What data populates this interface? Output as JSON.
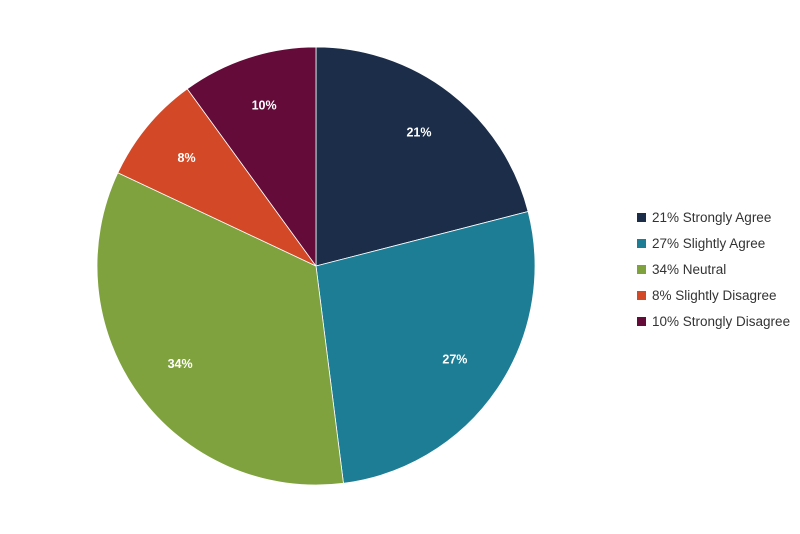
{
  "chart_data": {
    "type": "pie",
    "slices": [
      {
        "label": "21% Strongly Agree",
        "data_label": "21%",
        "value": 21,
        "color": "#1b2d48"
      },
      {
        "label": "27% Slightly Agree",
        "data_label": "27%",
        "value": 27,
        "color": "#1c7d95"
      },
      {
        "label": "34% Neutral",
        "data_label": "34%",
        "value": 34,
        "color": "#7fa23f"
      },
      {
        "label": "8% Slightly Disagree",
        "data_label": "8%",
        "value": 8,
        "color": "#d34827"
      },
      {
        "label": "10% Strongly Disagree",
        "data_label": "10%",
        "value": 10,
        "color": "#640b39"
      }
    ],
    "start_direction": "12 o'clock",
    "order": "clockwise",
    "legend_position": "right"
  }
}
